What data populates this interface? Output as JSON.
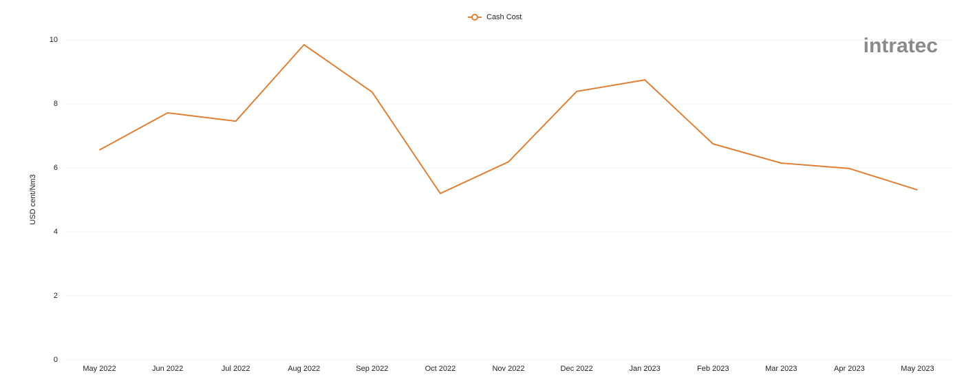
{
  "chart_data": {
    "type": "line",
    "categories": [
      "May 2022",
      "Jun 2022",
      "Jul 2022",
      "Aug 2022",
      "Sep 2022",
      "Oct 2022",
      "Nov 2022",
      "Dec 2022",
      "Jan 2023",
      "Feb 2023",
      "Mar 2023",
      "Apr 2023",
      "May 2023"
    ],
    "series": [
      {
        "name": "Cash Cost",
        "color": "#e07f34",
        "values": [
          6.56,
          7.72,
          7.46,
          9.85,
          8.37,
          5.2,
          6.19,
          8.39,
          8.75,
          6.75,
          6.15,
          5.98,
          5.31
        ]
      }
    ],
    "y_label": "USD cent/Nm3",
    "ylim": [
      0,
      10
    ],
    "yticks": [
      0,
      2,
      4,
      6,
      8,
      10
    ],
    "grid": true,
    "legend": "top",
    "watermark": "intratec"
  }
}
